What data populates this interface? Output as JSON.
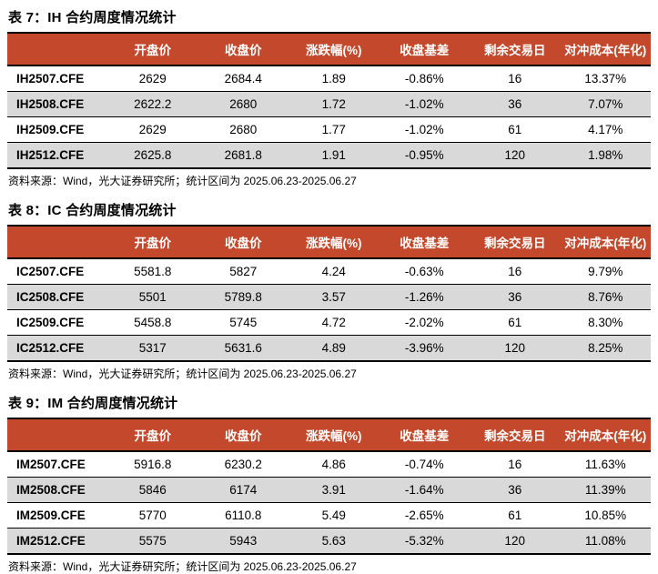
{
  "colors": {
    "header_bg": "#C4482B",
    "header_text": "#FFFFFF",
    "row_alt_bg": "#D9D9D9",
    "border": "#000000"
  },
  "tables": [
    {
      "title": "表 7：IH 合约周度情况统计",
      "columns": [
        "",
        "开盘价",
        "收盘价",
        "涨跌幅(%)",
        "收盘基差",
        "剩余交易日",
        "对冲成本(年化)"
      ],
      "rows": [
        [
          "IH2507.CFE",
          "2629",
          "2684.4",
          "1.89",
          "-0.86%",
          "16",
          "13.37%"
        ],
        [
          "IH2508.CFE",
          "2622.2",
          "2680",
          "1.72",
          "-1.02%",
          "36",
          "7.07%"
        ],
        [
          "IH2509.CFE",
          "2629",
          "2680",
          "1.77",
          "-1.02%",
          "61",
          "4.17%"
        ],
        [
          "IH2512.CFE",
          "2625.8",
          "2681.8",
          "1.91",
          "-0.95%",
          "120",
          "1.98%"
        ]
      ],
      "source": "资料来源：Wind，光大证券研究所；统计区间为 2025.06.23-2025.06.27"
    },
    {
      "title": "表 8：IC 合约周度情况统计",
      "columns": [
        "",
        "开盘价",
        "收盘价",
        "涨跌幅(%)",
        "收盘基差",
        "剩余交易日",
        "对冲成本(年化)"
      ],
      "rows": [
        [
          "IC2507.CFE",
          "5581.8",
          "5827",
          "4.24",
          "-0.63%",
          "16",
          "9.79%"
        ],
        [
          "IC2508.CFE",
          "5501",
          "5789.8",
          "3.57",
          "-1.26%",
          "36",
          "8.76%"
        ],
        [
          "IC2509.CFE",
          "5458.8",
          "5745",
          "4.72",
          "-2.02%",
          "61",
          "8.30%"
        ],
        [
          "IC2512.CFE",
          "5317",
          "5631.6",
          "4.89",
          "-3.96%",
          "120",
          "8.25%"
        ]
      ],
      "source": "资料来源：Wind，光大证券研究所；统计区间为 2025.06.23-2025.06.27"
    },
    {
      "title": "表 9：IM 合约周度情况统计",
      "columns": [
        "",
        "开盘价",
        "收盘价",
        "涨跌幅(%)",
        "收盘基差",
        "剩余交易日",
        "对冲成本(年化)"
      ],
      "rows": [
        [
          "IM2507.CFE",
          "5916.8",
          "6230.2",
          "4.86",
          "-0.74%",
          "16",
          "11.63%"
        ],
        [
          "IM2508.CFE",
          "5846",
          "6174",
          "3.91",
          "-1.64%",
          "36",
          "11.39%"
        ],
        [
          "IM2509.CFE",
          "5770",
          "6110.8",
          "5.49",
          "-2.65%",
          "61",
          "10.85%"
        ],
        [
          "IM2512.CFE",
          "5575",
          "5943",
          "5.63",
          "-5.32%",
          "120",
          "11.08%"
        ]
      ],
      "source": "资料来源：Wind，光大证券研究所；统计区间为 2025.06.23-2025.06.27"
    }
  ]
}
